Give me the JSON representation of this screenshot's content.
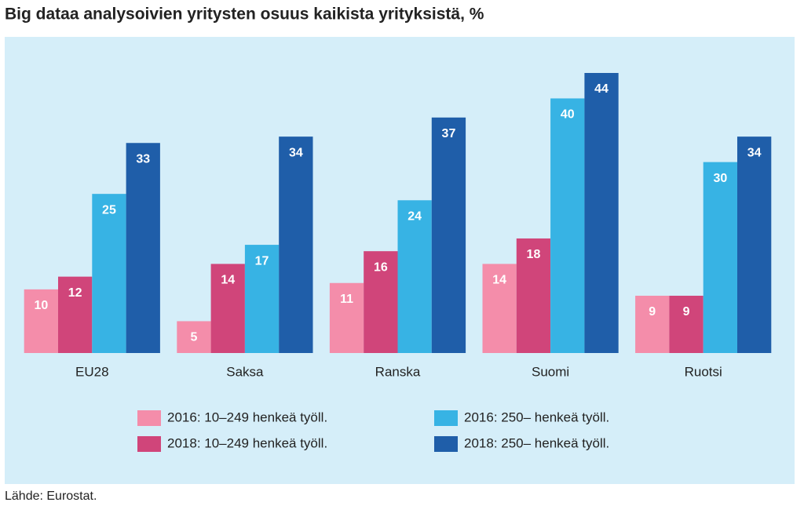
{
  "chart_data": {
    "type": "bar",
    "title": "Big dataa analysoivien yritysten osuus kaikista yrityksistä, %",
    "source": "Lähde: Eurostat.",
    "categories": [
      "EU28",
      "Saksa",
      "Ranska",
      "Suomi",
      "Ruotsi"
    ],
    "series": [
      {
        "name": "2016: 10–249 henkeä työll.",
        "color": "#f48daa",
        "values": [
          10,
          5,
          11,
          14,
          9
        ]
      },
      {
        "name": "2018: 10–249 henkeä työll.",
        "color": "#d0457a",
        "values": [
          12,
          14,
          16,
          18,
          9
        ]
      },
      {
        "name": "2016: 250– henkeä työll.",
        "color": "#37b3e4",
        "values": [
          25,
          17,
          24,
          40,
          30
        ]
      },
      {
        "name": "2018: 250– henkeä työll.",
        "color": "#1f5ea9",
        "values": [
          33,
          34,
          37,
          44,
          34
        ]
      }
    ],
    "ylim": [
      0,
      44
    ]
  }
}
